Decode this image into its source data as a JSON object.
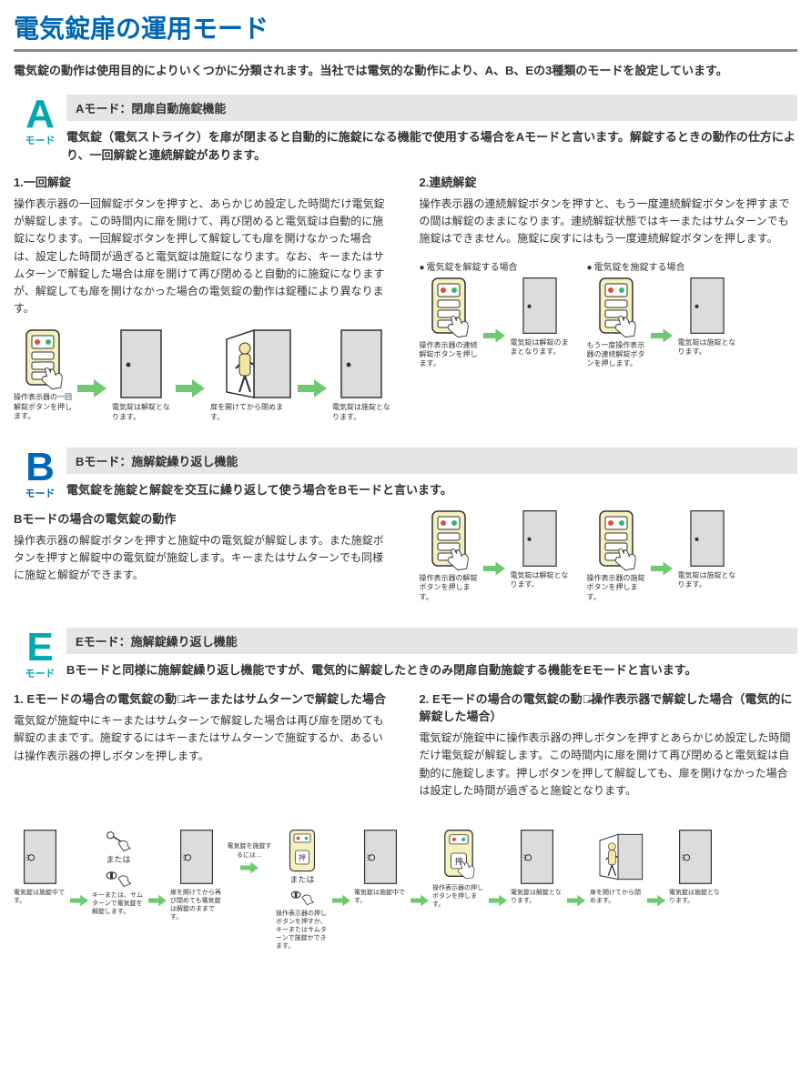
{
  "page_title": "電気錠扉の運用モード",
  "intro": "電気錠の動作は使用目的によりいくつかに分類されます。当社では電気的な動作により、A、B、Eの3種類のモードを設定しています。",
  "colors": {
    "teal": "#00a8b0",
    "blue": "#0066b3",
    "gray_bar": "#e5e5e5",
    "arrow_green": "#6fc96f",
    "keypad_body": "#f5f0c0",
    "door_fill": "#dcdcdc"
  },
  "mode_a": {
    "letter": "A",
    "letter_sub": "モード",
    "title": "Aモード：閉扉自動施錠機能",
    "desc": "電気錠（電気ストライク）を扉が閉まると自動的に施錠になる機能で使用する場合をAモードと言います。解錠するときの動作の仕方により、一回解錠と連続解錠があります。",
    "left": {
      "h": "1.一回解錠",
      "body": "操作表示器の一回解錠ボタンを押すと、あらかじめ設定した時間だけ電気錠が解錠します。この時間内に扉を開けて、再び閉めると電気錠は自動的に施錠になります。一回解錠ボタンを押して解錠しても扉を開けなかった場合は、設定した時間が過ぎると電気錠は施錠になります。なお、キーまたはサムターンで解錠した場合は扉を開けて再び閉めると自動的に施錠になりますが、解錠しても扉を開けなかった場合の電気錠の動作は錠種により異なります。",
      "diagram": [
        {
          "type": "keypad",
          "cap": "操作表示器の一回解錠ボタンを押します。"
        },
        {
          "type": "arrow"
        },
        {
          "type": "door_closed",
          "cap": "電気錠は解錠となります。"
        },
        {
          "type": "arrow"
        },
        {
          "type": "door_open_person",
          "cap": "扉を開けてから閉めます。",
          "wide": true
        },
        {
          "type": "arrow"
        },
        {
          "type": "door_closed",
          "cap": "電気錠は施錠となります。"
        }
      ]
    },
    "right": {
      "h": "2.連続解錠",
      "body": "操作表示器の連続解錠ボタンを押すと、もう一度連続解錠ボタンを押すまでの間は解錠のままになります。連続解錠状態ではキーまたはサムターンでも施錠はできません。施錠に戻すにはもう一度連続解錠ボタンを押します。",
      "sub_labels": {
        "unlock": "電気錠を解錠する場合",
        "lock": "電気錠を施錠する場合"
      },
      "diagram_unlock": [
        {
          "type": "keypad",
          "cap": "操作表示器の連続解錠ボタンを押します。"
        },
        {
          "type": "arrow"
        },
        {
          "type": "door_closed",
          "cap": "電気錠は解錠のままとなります。"
        }
      ],
      "diagram_lock": [
        {
          "type": "keypad",
          "cap": "もう一度操作表示器の連続解錠ボタンを押します。"
        },
        {
          "type": "arrow"
        },
        {
          "type": "door_closed",
          "cap": "電気錠は施錠となります。"
        }
      ]
    }
  },
  "mode_b": {
    "letter": "B",
    "letter_sub": "モード",
    "title": "Bモード：施解錠繰り返し機能",
    "desc": "電気錠を施錠と解錠を交互に繰り返して使う場合をBモードと言います。",
    "left": {
      "h": "Bモードの場合の電気錠の動作",
      "body": "操作表示器の解錠ボタンを押すと施錠中の電気錠が解錠します。また施錠ボタンを押すと解錠中の電気錠が施錠します。キーまたはサムターンでも同様に施錠と解錠ができます。"
    },
    "diagram_unlock": [
      {
        "type": "keypad",
        "cap": "操作表示器の解錠ボタンを押します。"
      },
      {
        "type": "arrow"
      },
      {
        "type": "door_closed",
        "cap": "電気錠は解錠となります。"
      }
    ],
    "diagram_lock": [
      {
        "type": "keypad",
        "cap": "操作表示器の施錠ボタンを押します。"
      },
      {
        "type": "arrow"
      },
      {
        "type": "door_closed",
        "cap": "電気錠は施錠となります。"
      }
    ]
  },
  "mode_e": {
    "letter": "E",
    "letter_sub": "モード",
    "title": "Eモード：施解錠繰り返し機能",
    "desc": "Bモードと同様に施解錠繰り返し機能ですが、電気的に解錠したときのみ閉扉自動施錠する機能をEモードと言います。",
    "left": {
      "h": "1. Eモードの場合の電気錠の動作̶̶キーまたはサムターンで解錠した場合",
      "body": "電気錠が施錠中にキーまたはサムターンで解錠した場合は再び扉を閉めても解錠のままです。施錠するにはキーまたはサムターンで施錠するか、あるいは操作表示器の押しボタンを押します。"
    },
    "right": {
      "h": "2. Eモードの場合の電気錠の動作̶̶操作表示器で解錠した場合（電気的に解錠した場合）",
      "body": "電気錠が施錠中に操作表示器の押しボタンを押すとあらかじめ設定した時間だけ電気錠が解錠します。この時間内に扉を開けて再び閉めると電気錠は自動的に施錠します。押しボタンを押して解錠しても、扉を開けなかった場合は設定した時間が過ぎると施錠となります。"
    },
    "bottom_diagram": [
      {
        "type": "door_knob",
        "cap": "電気錠は施錠中です。"
      },
      {
        "type": "arrow"
      },
      {
        "type": "hand_key_stack",
        "cap": "キーまたは、サムターンで電気錠を解錠します。",
        "mid": "または"
      },
      {
        "type": "arrow"
      },
      {
        "type": "door_knob",
        "cap": "扉を開けてから再び閉めても電気錠は解錠のままです。"
      },
      {
        "type": "arrow_label",
        "label": "電気錠を施錠するには…"
      },
      {
        "type": "keypad_hand_stack",
        "cap": "操作表示器の押しボタンを押すか、キーまたはサムターンで施錠かできます。",
        "mid": "または"
      },
      {
        "type": "arrow"
      },
      {
        "type": "door_knob",
        "cap": "電気錠は施錠中です。"
      },
      {
        "type": "arrow"
      },
      {
        "type": "keypad_push",
        "cap": "操作表示器の押しボタンを押します。"
      },
      {
        "type": "arrow"
      },
      {
        "type": "door_knob",
        "cap": "電気錠は解錠となります。"
      },
      {
        "type": "arrow"
      },
      {
        "type": "door_open_person",
        "cap": "扉を開けてから閉めます。"
      },
      {
        "type": "arrow"
      },
      {
        "type": "door_knob",
        "cap": "電気錠は施錠となります。"
      }
    ]
  }
}
